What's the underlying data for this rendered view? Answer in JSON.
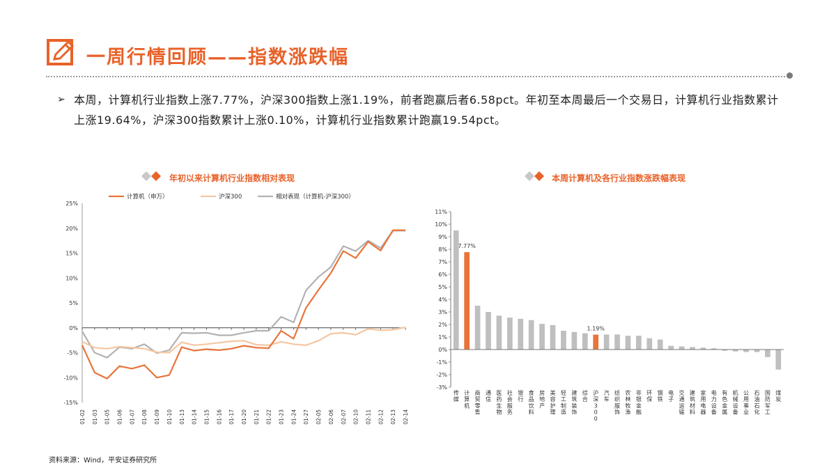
{
  "header": {
    "title": "一周行情回顾——指数涨跌幅",
    "icon": "pencil-icon",
    "accent_color": "#E8622A"
  },
  "summary": {
    "bullet": "➢",
    "text": "本周，计算机行业指数上涨7.77%，沪深300指数上涨1.19%，前者跑赢后者6.58pct。年初至本周最后一个交易日，计算机行业指数累计上涨19.64%，沪深300指数累计上涨0.10%，计算机行业指数累计跑赢19.54pct。"
  },
  "chart_data": [
    {
      "type": "line",
      "title": "年初以来计算机行业指数相对表现",
      "categories": [
        "01-02",
        "01-03",
        "01-05",
        "01-06",
        "01-07",
        "01-08",
        "01-09",
        "01-10",
        "01-13",
        "01-14",
        "01-15",
        "01-16",
        "01-17",
        "01-20",
        "01-21",
        "01-22",
        "01-23",
        "01-24",
        "01-27",
        "02-05",
        "02-06",
        "02-07",
        "02-10",
        "02-11",
        "02-12",
        "02-13",
        "02-14"
      ],
      "ylim": [
        -15,
        25
      ],
      "yticks": [
        "-15%",
        "-10%",
        "-5%",
        "0%",
        "5%",
        "10%",
        "15%",
        "20%",
        "25%"
      ],
      "series": [
        {
          "name": "计算机（申万）",
          "color": "#E8743B",
          "values": [
            -3.5,
            -9.0,
            -10.2,
            -7.7,
            -8.2,
            -7.5,
            -10.0,
            -9.5,
            -3.9,
            -4.6,
            -4.3,
            -4.5,
            -4.2,
            -3.6,
            -4.0,
            -4.1,
            -0.6,
            -2.2,
            4.0,
            7.6,
            11.0,
            15.4,
            14.0,
            17.3,
            15.5,
            19.6,
            19.6
          ]
        },
        {
          "name": "沪深300",
          "color": "#F5C6A0",
          "values": [
            -2.8,
            -4.0,
            -4.2,
            -3.8,
            -4.0,
            -4.2,
            -4.9,
            -5.0,
            -2.9,
            -3.5,
            -3.3,
            -3.0,
            -2.7,
            -2.6,
            -3.4,
            -3.5,
            -2.8,
            -3.3,
            -3.5,
            -2.6,
            -1.2,
            -1.0,
            -1.4,
            -0.2,
            -0.5,
            -0.4,
            0.1
          ]
        },
        {
          "name": "相对表现（计算机-沪深300）",
          "color": "#B2B2B2",
          "values": [
            -0.7,
            -5.0,
            -6.0,
            -3.9,
            -4.2,
            -3.3,
            -5.1,
            -4.5,
            -1.0,
            -1.1,
            -1.0,
            -1.5,
            -1.5,
            -1.0,
            -0.6,
            -0.6,
            2.2,
            1.1,
            7.5,
            10.2,
            12.2,
            16.4,
            15.4,
            17.5,
            16.0,
            19.5,
            19.5
          ]
        }
      ]
    },
    {
      "type": "bar",
      "title": "本周计算机及各行业指数涨跌幅表现",
      "ylim": [
        -3,
        11
      ],
      "yticks": [
        "-3%",
        "-2%",
        "-1%",
        "0%",
        "1%",
        "2%",
        "3%",
        "4%",
        "5%",
        "6%",
        "7%",
        "8%",
        "9%",
        "10%",
        "11%"
      ],
      "categories": [
        "传媒",
        "计算机",
        "商贸零售",
        "通信",
        "医药生物",
        "社会服务",
        "银行",
        "食品饮料",
        "房地产",
        "美容护理",
        "轻工制造",
        "建筑装饰",
        "综合",
        "沪深300",
        "汽车",
        "纺织服饰",
        "农林牧渔",
        "非银金融",
        "环保",
        "钢铁",
        "电子",
        "交通运输",
        "建筑材料",
        "家用电器",
        "电力设备",
        "有色金属",
        "机械设备",
        "公用事业",
        "石油石化",
        "国防军工",
        "煤炭"
      ],
      "values": [
        9.5,
        7.77,
        3.5,
        3.0,
        2.7,
        2.55,
        2.45,
        2.35,
        2.05,
        1.95,
        1.5,
        1.4,
        1.3,
        1.19,
        1.2,
        1.2,
        1.1,
        1.1,
        0.9,
        0.8,
        0.3,
        0.25,
        0.2,
        0.15,
        0.1,
        -0.1,
        -0.15,
        -0.2,
        -0.2,
        -0.6,
        -1.6
      ],
      "highlight": [
        "计算机",
        "沪深300"
      ],
      "bar_color": "#BFBFBF",
      "highlight_color": "#E8743B",
      "data_labels": {
        "计算机": "7.77%",
        "沪深300": "1.19%"
      }
    }
  ],
  "source": "资料来源：Wind，平安证券研究所"
}
